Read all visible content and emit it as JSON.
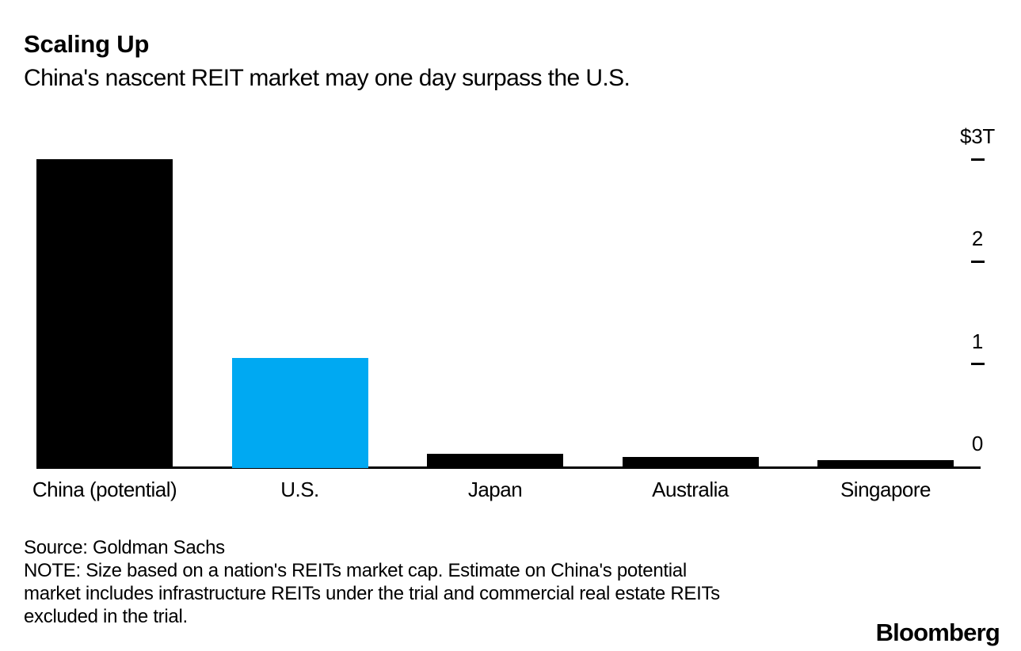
{
  "header": {
    "title": "Scaling Up",
    "subtitle": "China's nascent REIT market may one day surpass the U.S."
  },
  "chart_data": {
    "type": "bar",
    "title": "Scaling Up",
    "subtitle": "China's nascent REIT market may one day surpass the U.S.",
    "categories": [
      "China (potential)",
      "U.S.",
      "Japan",
      "Australia",
      "Singapore"
    ],
    "values": [
      3.0,
      1.06,
      0.12,
      0.09,
      0.06
    ],
    "unit": "trillions of U.S. dollars",
    "bar_colors": [
      "#000000",
      "#00a9f2",
      "#000000",
      "#000000",
      "#000000"
    ],
    "yticks": [
      {
        "label": "$3T",
        "value": 3,
        "dash": true
      },
      {
        "label": "2",
        "value": 2,
        "dash": true
      },
      {
        "label": "1",
        "value": 1,
        "dash": true
      },
      {
        "label": "0",
        "value": 0,
        "dash": false
      }
    ],
    "ylim": [
      0,
      3
    ],
    "axis_side": "right",
    "grid": false,
    "legend_position": "none"
  },
  "footer": {
    "source": "Source: Goldman Sachs",
    "note_lines": [
      "NOTE: Size based on a nation's REITs market cap. Estimate on China's potential",
      "market includes infrastructure REITs under the trial and commercial real estate REITs",
      "excluded in the trial."
    ],
    "brand": "Bloomberg"
  },
  "colors": {
    "background": "#ffffff",
    "bar_default": "#000000",
    "bar_highlight": "#00a9f2",
    "text": "#000000",
    "axis": "#000000"
  }
}
